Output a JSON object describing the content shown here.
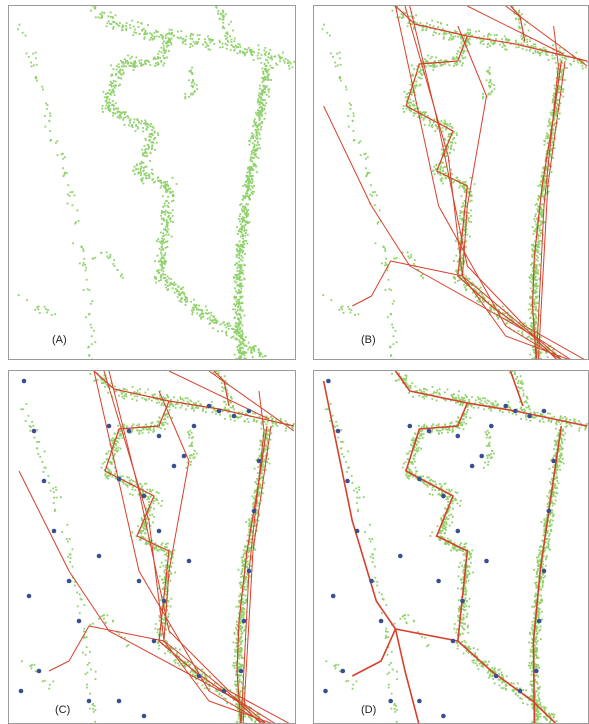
{
  "colors": {
    "points": "#8fd16a",
    "trajectories": "#d8402c",
    "nodes": "#3a4f92",
    "frame": "#9a9a9a"
  },
  "panels": [
    {
      "id": "A",
      "label": "(A)"
    },
    {
      "id": "B",
      "label": "(B)"
    },
    {
      "id": "C",
      "label": "(C)"
    },
    {
      "id": "D",
      "label": "(D)"
    }
  ]
}
